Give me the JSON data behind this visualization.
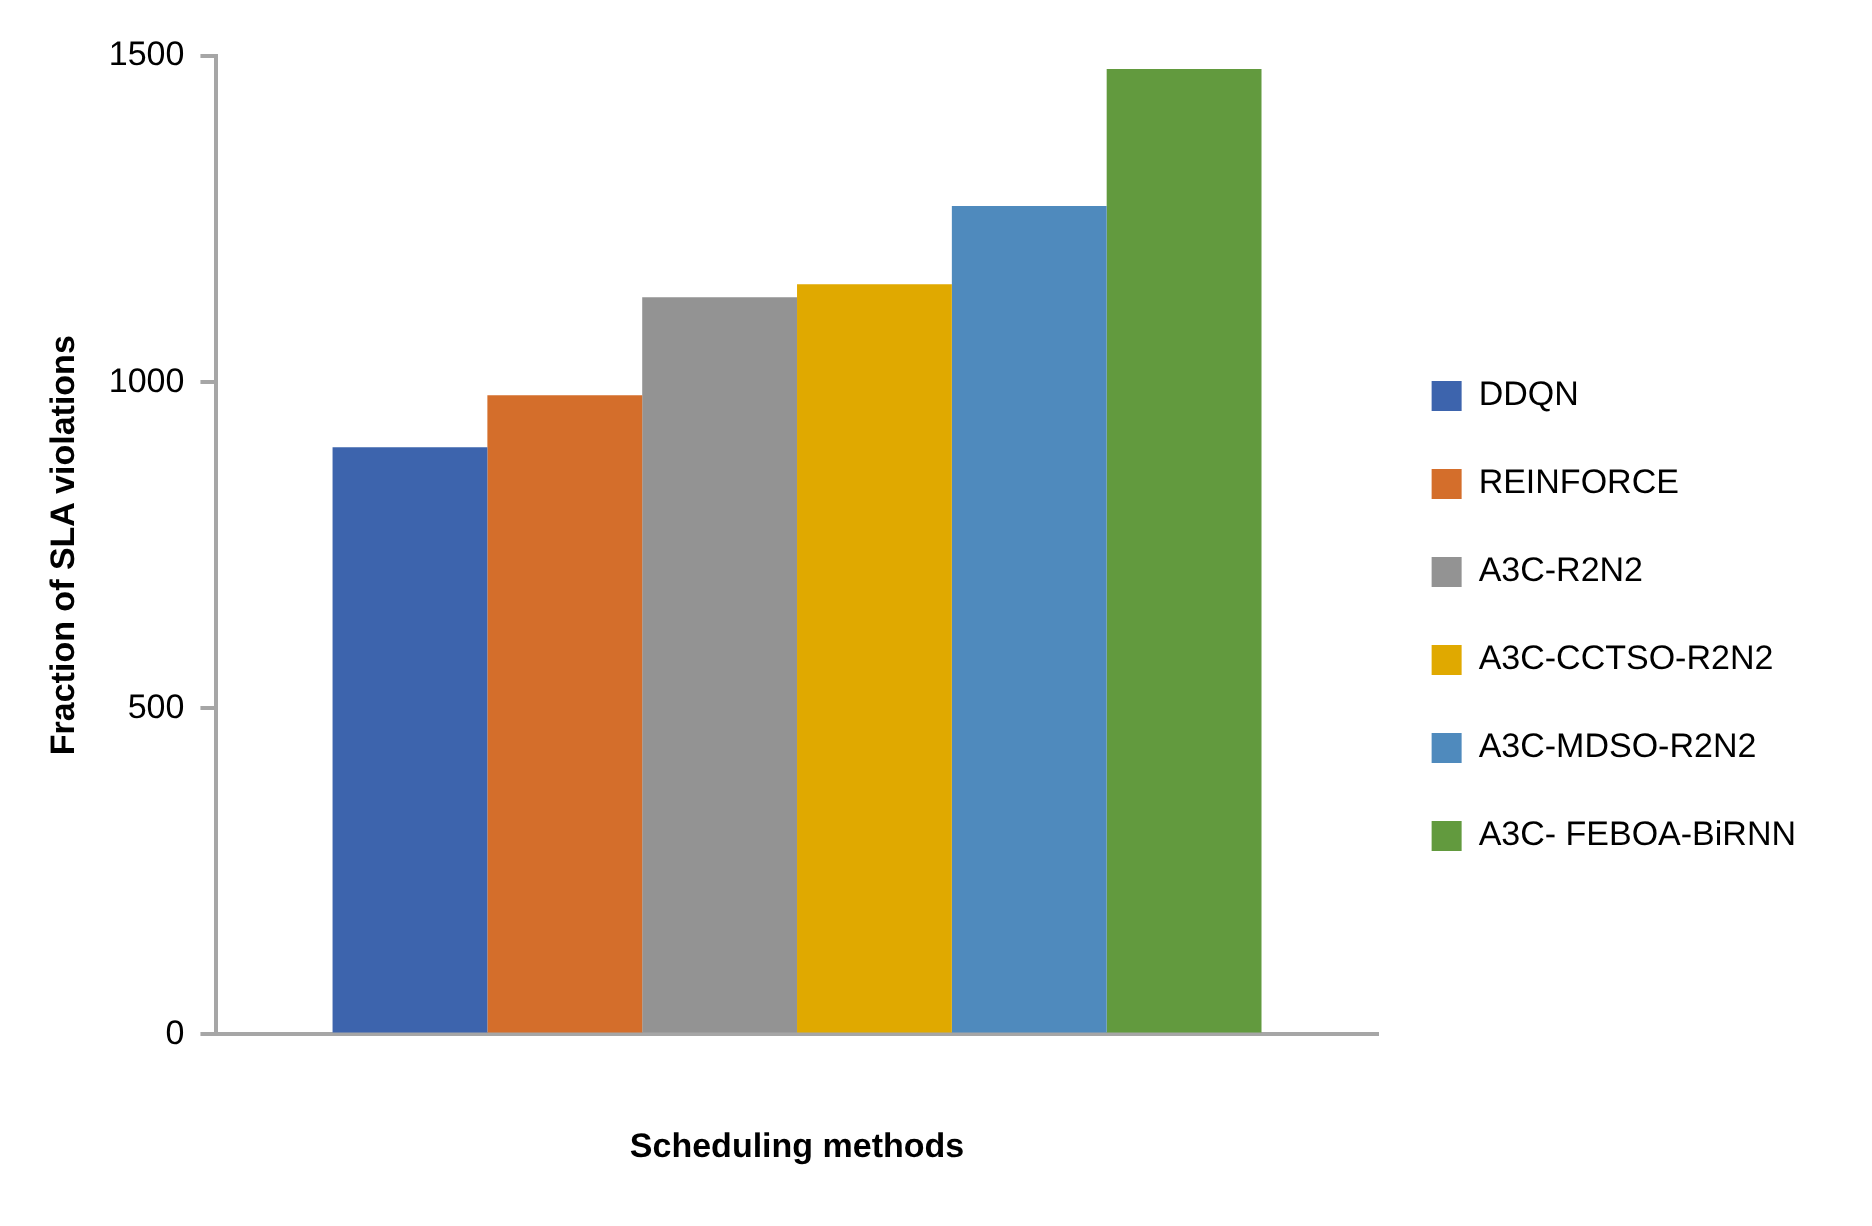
{
  "chart_data": {
    "type": "bar",
    "xlabel": "Scheduling methods",
    "ylabel": "Fraction of SLA violations",
    "categories": [
      null
    ],
    "series": [
      {
        "name": "DDQN",
        "color": "#3d64ad",
        "values": [
          900
        ]
      },
      {
        "name": "REINFORCE",
        "color": "#d46e2b",
        "values": [
          980
        ]
      },
      {
        "name": "A3C-R2N2",
        "color": "#939393",
        "values": [
          1130
        ]
      },
      {
        "name": "A3C-CCTSO-R2N2",
        "color": "#e0a900",
        "values": [
          1150
        ]
      },
      {
        "name": "A3C-MDSO-R2N2",
        "color": "#4f8abd",
        "values": [
          1270
        ]
      },
      {
        "name": "A3C- FEBOA-BiRNN",
        "color": "#629a3e",
        "values": [
          1480
        ]
      }
    ],
    "ylim": [
      0,
      1500
    ],
    "yticks": [
      0,
      500,
      1000,
      1500
    ],
    "grid": false,
    "legend": "right"
  }
}
